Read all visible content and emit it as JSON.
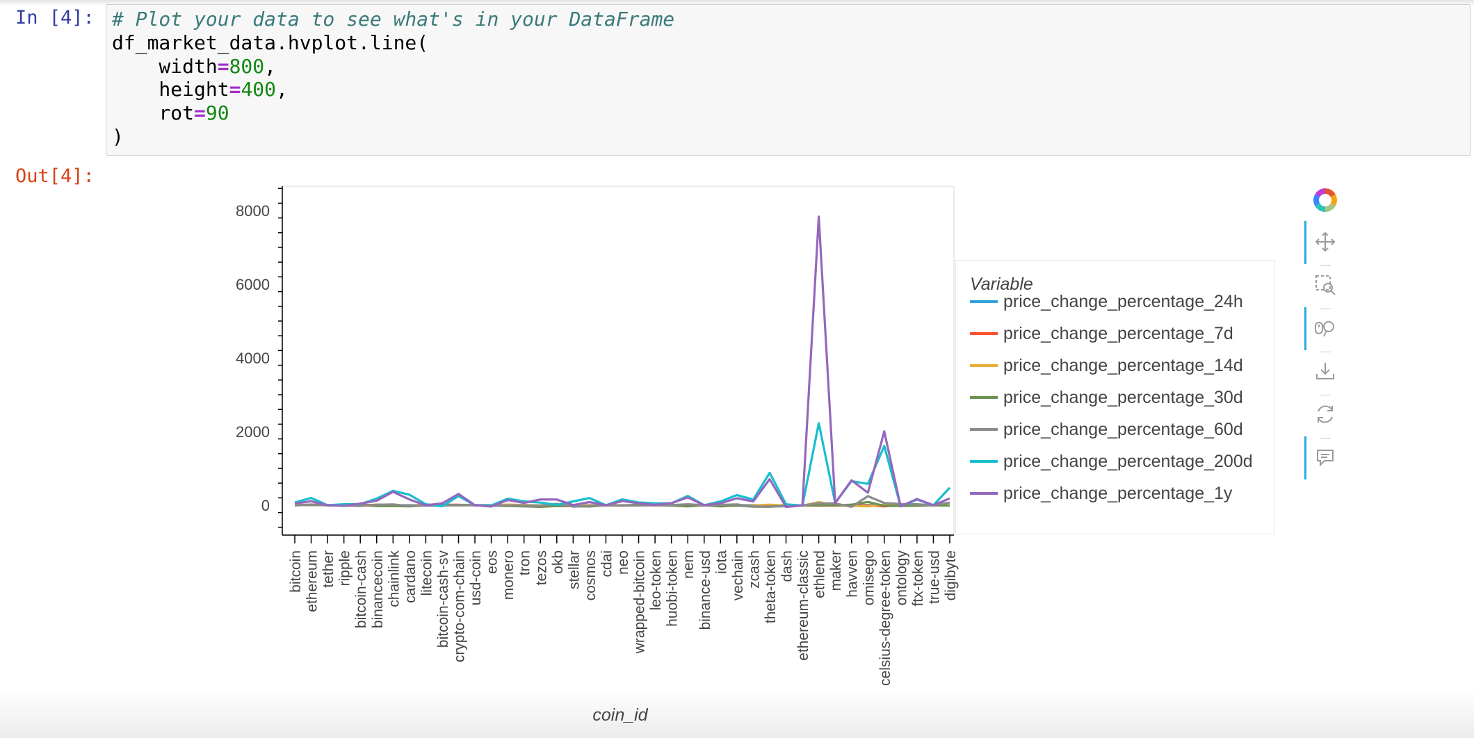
{
  "cells": {
    "in_prompt": "In [4]:",
    "out_prompt": "Out[4]:",
    "code": {
      "comment": "# Plot your data to see what's in your DataFrame",
      "call": "df_market_data.hvplot.line(",
      "args": [
        {
          "name": "    width",
          "op": "=",
          "value": "800",
          "sep": ","
        },
        {
          "name": "    height",
          "op": "=",
          "value": "400",
          "sep": ","
        },
        {
          "name": "    rot",
          "op": "=",
          "value": "90",
          "sep": ""
        }
      ],
      "close": ")"
    }
  },
  "toolbar": {
    "tools": [
      {
        "name": "pan-tool-icon",
        "active": true
      },
      {
        "name": "box-zoom-tool-icon",
        "active": false
      },
      {
        "name": "wheel-zoom-tool-icon",
        "active": true
      },
      {
        "name": "save-tool-icon",
        "active": false
      },
      {
        "name": "reset-tool-icon",
        "active": false
      },
      {
        "name": "hover-tool-icon",
        "active": true
      }
    ],
    "active_color": "#26aae1"
  },
  "chart_data": {
    "type": "line",
    "xlabel": "coin_id",
    "ylabel": "",
    "ylim": [
      -800,
      8600
    ],
    "yticks": [
      0,
      2000,
      4000,
      6000,
      8000
    ],
    "x_tick_rotation": 90,
    "legend": {
      "title": "Variable",
      "placement": "right"
    },
    "grid": false,
    "categories": [
      "bitcoin",
      "ethereum",
      "tether",
      "ripple",
      "bitcoin-cash",
      "binancecoin",
      "chainlink",
      "cardano",
      "litecoin",
      "bitcoin-cash-sv",
      "crypto-com-chain",
      "usd-coin",
      "eos",
      "monero",
      "tron",
      "tezos",
      "okb",
      "stellar",
      "cosmos",
      "cdai",
      "neo",
      "wrapped-bitcoin",
      "leo-token",
      "huobi-token",
      "nem",
      "binance-usd",
      "iota",
      "vechain",
      "zcash",
      "theta-token",
      "dash",
      "ethereum-classic",
      "ethlend",
      "maker",
      "havven",
      "omisego",
      "celsius-degree-token",
      "ontology",
      "ftx-token",
      "true-usd",
      "digibyte"
    ],
    "series": [
      {
        "name": "price_change_percentage_24h",
        "color": "#30a2da",
        "values": [
          1,
          5,
          0,
          -1,
          2,
          -1,
          -2,
          0,
          1,
          -1,
          -3,
          0,
          0,
          3,
          0,
          -1,
          3,
          0,
          2,
          0,
          0,
          1,
          1,
          0,
          -2,
          0,
          0,
          -1,
          3,
          -5,
          0,
          -2,
          -4,
          -3,
          0,
          1,
          -3,
          0,
          -2,
          0,
          -1
        ]
      },
      {
        "name": "price_change_percentage_7d",
        "color": "#fc4f30",
        "values": [
          7,
          11,
          0,
          -2,
          9,
          5,
          -13,
          -15,
          9,
          12,
          11,
          0,
          -4,
          13,
          1,
          -15,
          -11,
          -4,
          -17,
          0,
          -6,
          8,
          -3,
          3,
          -1,
          0,
          -15,
          -13,
          -11,
          -27,
          -6,
          -8,
          -12,
          -7,
          -23,
          -6,
          -33,
          1,
          12,
          0,
          -6
        ]
      },
      {
        "name": "price_change_percentage_14d",
        "color": "#e5ae38",
        "values": [
          6,
          8,
          0,
          15,
          -21,
          19,
          -12,
          -18,
          7,
          0,
          -6,
          0,
          0,
          17,
          5,
          -8,
          0,
          0,
          -4,
          0,
          -7,
          5,
          1,
          12,
          0,
          0,
          -6,
          -9,
          -5,
          15,
          -14,
          -13,
          84,
          -12,
          -19,
          -32,
          16,
          -10,
          -3,
          0,
          -2
        ]
      },
      {
        "name": "price_change_percentage_30d",
        "color": "#6d904f",
        "values": [
          7,
          9,
          0,
          -15,
          5,
          -25,
          -21,
          -30,
          -3,
          10,
          6,
          0,
          -14,
          -20,
          -30,
          -46,
          -23,
          -27,
          -35,
          0,
          -11,
          9,
          0,
          -10,
          -30,
          0,
          -30,
          -8,
          -40,
          -43,
          -16,
          -5,
          -1,
          -5,
          15,
          89,
          -17,
          -20,
          -16,
          0,
          -10
        ]
      },
      {
        "name": "price_change_percentage_60d",
        "color": "#8b8b8b",
        "values": [
          -7,
          18,
          0,
          -9,
          -21,
          14,
          23,
          -22,
          -11,
          -12,
          6,
          0,
          -1,
          -5,
          -8,
          -18,
          37,
          -40,
          -23,
          0,
          -13,
          -7,
          -2,
          2,
          26,
          0,
          10,
          23,
          -37,
          -35,
          -29,
          -5,
          53,
          49,
          -43,
          246,
          60,
          34,
          27,
          0,
          71
        ]
      },
      {
        "name": "price_change_percentage_200d",
        "color": "#17becf",
        "values": [
          75,
          197,
          0,
          26,
          31,
          179,
          390,
          285,
          26,
          -30,
          250,
          -1,
          -5,
          178,
          104,
          71,
          7,
          103,
          194,
          0,
          158,
          75,
          51,
          52,
          251,
          0,
          101,
          275,
          154,
          880,
          24,
          -10,
          2227,
          62,
          654,
          579,
          1609,
          -32,
          152,
          0,
          473
        ]
      },
      {
        "name": "price_change_percentage_1y",
        "color": "#9467bd",
        "values": [
          50,
          108,
          0,
          -17,
          43,
          123,
          362,
          157,
          -2,
          49,
          305,
          0,
          -35,
          139,
          62,
          156,
          154,
          4,
          84,
          0,
          112,
          52,
          9,
          54,
          212,
          0,
          53,
          188,
          104,
          707,
          -48,
          -5,
          7836,
          58,
          676,
          340,
          2003,
          -30,
          168,
          0,
          185
        ]
      }
    ]
  }
}
